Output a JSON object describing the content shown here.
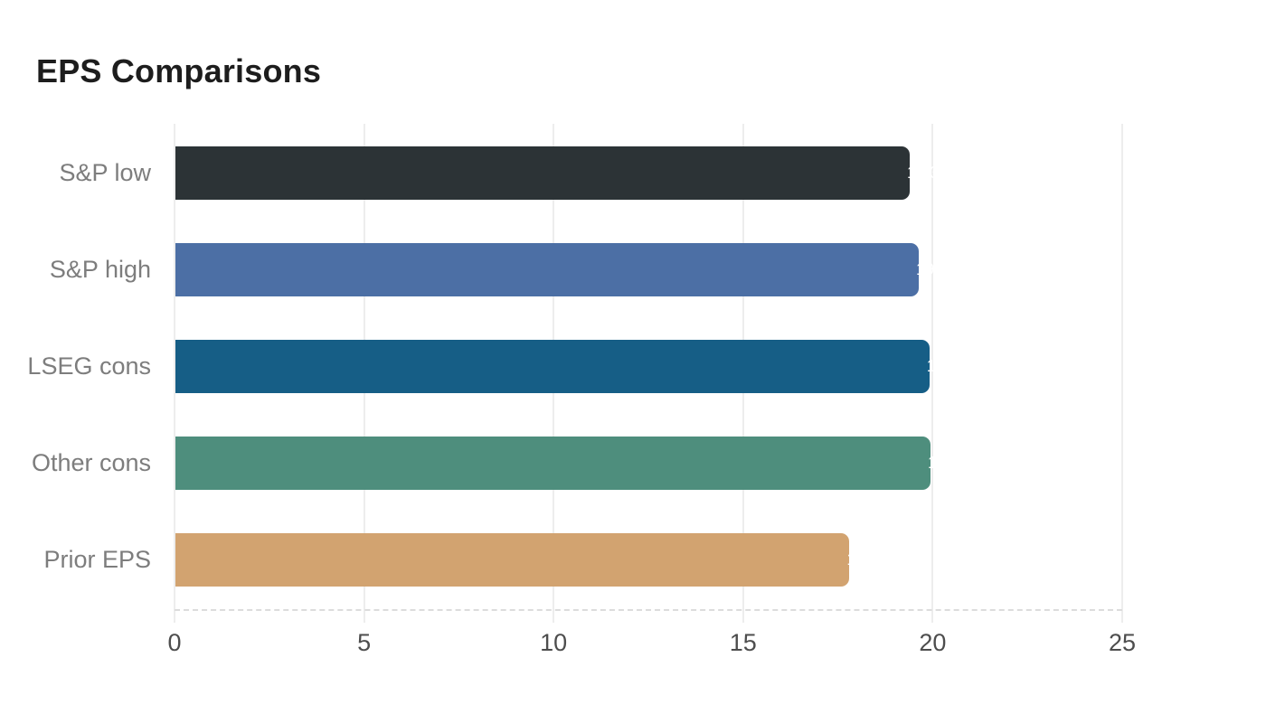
{
  "page": {
    "background": "#ffffff"
  },
  "chart_data": {
    "type": "bar",
    "orientation": "horizontal",
    "title": "EPS Comparisons",
    "categories": [
      "S&P low",
      "S&P high",
      "LSEG cons",
      "Other cons",
      "Prior EPS"
    ],
    "values": [
      19.37,
      19.61,
      19.89,
      19.92,
      17.78
    ],
    "value_labels": [
      "19.37",
      "19.61",
      "19.89",
      "19.92",
      "17.78"
    ],
    "bar_colors": [
      "#2c3336",
      "#4c6fa5",
      "#165e86",
      "#4e8e7d",
      "#d2a370"
    ],
    "xlabel": "",
    "ylabel": "",
    "xlim": [
      0,
      25
    ],
    "x_ticks": [
      0,
      5,
      10,
      15,
      20,
      25
    ],
    "grid": true,
    "legend": "none",
    "data_label_color": "#ffffff",
    "bar_corner_radius_right": 9
  },
  "style": {
    "title_color": "#1d1d1d",
    "category_label_color": "#7d7d7d",
    "tick_label_color": "#4d4d4d",
    "gridline_color": "#ededed",
    "axis_dash_color": "#dcdcdc"
  }
}
